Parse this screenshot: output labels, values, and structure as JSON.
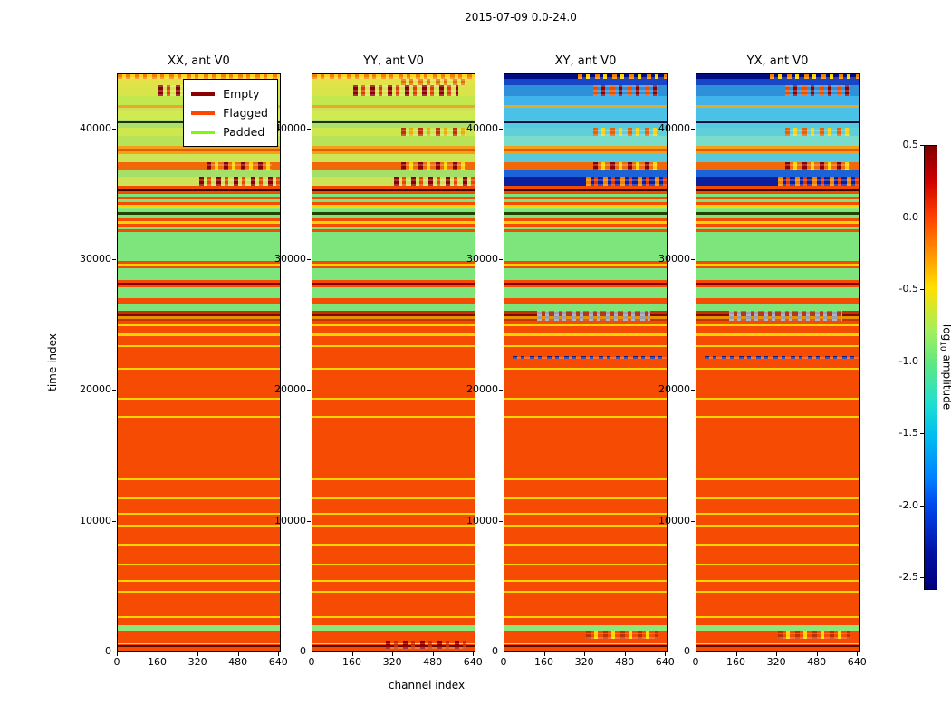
{
  "chart_data": {
    "type": "heatmap",
    "suptitle": "2015-07-09 0.0-24.0",
    "xlabel": "channel index",
    "ylabel": "time index",
    "x_max": 650,
    "y_max": 44200,
    "x_ticks": [
      {
        "v": 0,
        "label": "0"
      },
      {
        "v": 160,
        "label": "160"
      },
      {
        "v": 320,
        "label": "320"
      },
      {
        "v": 480,
        "label": "480"
      },
      {
        "v": 640,
        "label": "640"
      }
    ],
    "y_ticks": [
      {
        "v": 0,
        "label": "0"
      },
      {
        "v": 10000,
        "label": "10000"
      },
      {
        "v": 20000,
        "label": "20000"
      },
      {
        "v": 30000,
        "label": "30000"
      },
      {
        "v": 40000,
        "label": "40000"
      }
    ],
    "legend": [
      {
        "label": "Empty",
        "color": "#8b0000"
      },
      {
        "label": "Flagged",
        "color": "#ff4500"
      },
      {
        "label": "Padded",
        "color": "#7cfc00"
      }
    ],
    "colorbar": {
      "label_pre": "log",
      "label_sub": "10",
      "label_post": " amplitude",
      "ticks": [
        {
          "label": "0.5",
          "f": 0.0
        },
        {
          "label": "0.0",
          "f": 0.162
        },
        {
          "label": "-0.5",
          "f": 0.324
        },
        {
          "label": "-1.0",
          "f": 0.486
        },
        {
          "label": "-1.5",
          "f": 0.648
        },
        {
          "label": "-2.0",
          "f": 0.81
        },
        {
          "label": "-2.5",
          "f": 0.972
        }
      ],
      "gradient": [
        {
          "p": 0,
          "c": "#800000"
        },
        {
          "p": 8,
          "c": "#d00000"
        },
        {
          "p": 16,
          "c": "#ff4000"
        },
        {
          "p": 24,
          "c": "#ff9000"
        },
        {
          "p": 32,
          "c": "#ffe000"
        },
        {
          "p": 42,
          "c": "#a0f060"
        },
        {
          "p": 49,
          "c": "#60e880"
        },
        {
          "p": 58,
          "c": "#20e0d0"
        },
        {
          "p": 65,
          "c": "#00c0f0"
        },
        {
          "p": 75,
          "c": "#0080ff"
        },
        {
          "p": 81,
          "c": "#0048f0"
        },
        {
          "p": 92,
          "c": "#0010a0"
        },
        {
          "p": 100,
          "c": "#000080"
        }
      ]
    },
    "bands_common": [
      {
        "t0": 0,
        "t1": 25300,
        "c": "#f54b03"
      },
      {
        "t0": 280,
        "t1": 430,
        "c": "#5a1000"
      },
      {
        "t0": 480,
        "t1": 630,
        "c": "#ffd400"
      },
      {
        "t0": 1550,
        "t1": 1980,
        "c": "#8ce87d"
      },
      {
        "t0": 2520,
        "t1": 2670,
        "c": "#ffd400"
      },
      {
        "t0": 4420,
        "t1": 4570,
        "c": "#ffd400"
      },
      {
        "t0": 5260,
        "t1": 5410,
        "c": "#ffd400"
      },
      {
        "t0": 6500,
        "t1": 6650,
        "c": "#ffd400"
      },
      {
        "t0": 8020,
        "t1": 8170,
        "c": "#ffd400"
      },
      {
        "t0": 9530,
        "t1": 9680,
        "c": "#ffd400"
      },
      {
        "t0": 10440,
        "t1": 10590,
        "c": "#ffd400"
      },
      {
        "t0": 11640,
        "t1": 11790,
        "c": "#ffd400"
      },
      {
        "t0": 13050,
        "t1": 13200,
        "c": "#ffd400"
      },
      {
        "t0": 17830,
        "t1": 17990,
        "c": "#ffd400"
      },
      {
        "t0": 19260,
        "t1": 19420,
        "c": "#ffd400"
      },
      {
        "t0": 21540,
        "t1": 21700,
        "c": "#ffd400"
      },
      {
        "t0": 23260,
        "t1": 23420,
        "c": "#ffd400"
      },
      {
        "t0": 24140,
        "t1": 24300,
        "c": "#ffd400"
      },
      {
        "t0": 24850,
        "t1": 25010,
        "c": "#ffd400"
      },
      {
        "t0": 25300,
        "t1": 26050,
        "stripes": [
          "#c23500",
          "#7c0c00",
          "#e89000",
          "#c23500"
        ]
      },
      {
        "t0": 26050,
        "t1": 26650,
        "c": "#7de57b"
      },
      {
        "t0": 26650,
        "t1": 27060,
        "c": "#f54b03"
      },
      {
        "t0": 27060,
        "t1": 27900,
        "c": "#7de57b"
      },
      {
        "t0": 27900,
        "t1": 28420,
        "stripes": [
          "#f54b03",
          "#8b0000",
          "#f54b03",
          "#ffd400"
        ]
      },
      {
        "t0": 28420,
        "t1": 29350,
        "c": "#7de57b"
      },
      {
        "t0": 29350,
        "t1": 29880,
        "c": "#f54b03"
      },
      {
        "t0": 29560,
        "t1": 29700,
        "c": "#ffd400"
      },
      {
        "t0": 29880,
        "t1": 32040,
        "c": "#7de57b"
      },
      {
        "t0": 32040,
        "t1": 32520,
        "stripes": [
          "#7de57b",
          "#f54b03",
          "#7de57b",
          "#7de57b"
        ]
      },
      {
        "t0": 32520,
        "t1": 33120,
        "stripes": [
          "#f54b03",
          "#ffd400",
          "#f54b03",
          "#8b0000"
        ]
      },
      {
        "t0": 33120,
        "t1": 33820,
        "stripes": [
          "#7de57b",
          "#224400",
          "#7de57b",
          "#7de57b"
        ]
      },
      {
        "t0": 33820,
        "t1": 34420,
        "stripes": [
          "#f54b03",
          "#ffd400",
          "#8ce87d",
          "#f54b03"
        ]
      },
      {
        "t0": 34420,
        "t1": 35000,
        "stripes": [
          "#7de57b",
          "#f54b03",
          "#7de57b",
          "#224400"
        ]
      }
    ],
    "bands_top_A": [
      {
        "t0": 35000,
        "t1": 35660,
        "stripes": [
          "#f24c00",
          "#3a0800",
          "#f24c00",
          "#f24c00"
        ]
      },
      {
        "t0": 35660,
        "t1": 36360,
        "c": "#cfe257",
        "sp": [
          {
            "x0": 0.5,
            "x1": 1.0,
            "cs": [
              "#8b0000",
              "#e84800"
            ]
          }
        ]
      },
      {
        "t0": 36360,
        "t1": 36820,
        "c": "#a4e068"
      },
      {
        "t0": 36820,
        "t1": 37460,
        "c": "#f1680a",
        "sp": [
          {
            "x0": 0.55,
            "x1": 0.95,
            "cs": [
              "#8b0000",
              "#ffd400"
            ]
          }
        ]
      },
      {
        "t0": 37460,
        "t1": 38060,
        "c": "#cce455"
      },
      {
        "t0": 38060,
        "t1": 38700,
        "stripes": [
          "#f2a018",
          "#e85a00",
          "#f2a018",
          "#e85a00"
        ]
      },
      {
        "t0": 38700,
        "t1": 39460,
        "c": "#b8e257"
      },
      {
        "t0": 39460,
        "t1": 40110,
        "c": "#cde84f",
        "sp": [
          {
            "x0": 0.55,
            "x1": 0.95,
            "cs": [
              "#c03000",
              "#e8b000"
            ]
          }
        ]
      },
      {
        "t0": 40110,
        "t1": 40420,
        "c": "#ade06b"
      },
      {
        "t0": 40420,
        "t1": 40560,
        "c": "#223300"
      },
      {
        "t0": 40560,
        "t1": 40760,
        "c": "#ade06b"
      },
      {
        "t0": 40760,
        "t1": 41360,
        "c": "#d0ea52"
      },
      {
        "t0": 41360,
        "t1": 41860,
        "stripes": [
          "#e8a828",
          "#cfe257",
          "#e8a828",
          "#cfe257"
        ]
      },
      {
        "t0": 41860,
        "t1": 42560,
        "c": "#c2e84e"
      },
      {
        "t0": 42560,
        "t1": 43360,
        "c": "#d8e44a",
        "sp": [
          {
            "x0": 0.25,
            "x1": 0.9,
            "cs": [
              "#8b0000",
              "#d84000"
            ]
          }
        ]
      },
      {
        "t0": 43360,
        "t1": 43860,
        "c": "#e4e249",
        "sp": [
          {
            "x0": 0.55,
            "x1": 0.95,
            "cs": [
              "#e07000"
            ]
          }
        ]
      },
      {
        "t0": 43860,
        "t1": 44200,
        "c": "#ffd61e",
        "sp": [
          {
            "x0": 0.0,
            "x1": 1.0,
            "cs": [
              "#f08000"
            ]
          }
        ]
      }
    ],
    "bands_top_B": [
      {
        "t0": 35000,
        "t1": 35660,
        "stripes": [
          "#f24c00",
          "#3a0800",
          "#f24c00",
          "#f24c00"
        ]
      },
      {
        "t0": 35660,
        "t1": 36360,
        "c": "#0a1f9e",
        "sp": [
          {
            "x0": 0.5,
            "x1": 1.0,
            "cs": [
              "#f08000",
              "#e83000"
            ]
          }
        ]
      },
      {
        "t0": 36360,
        "t1": 36820,
        "c": "#1b63d6"
      },
      {
        "t0": 36820,
        "t1": 37460,
        "c": "#f1680a",
        "sp": [
          {
            "x0": 0.55,
            "x1": 0.95,
            "cs": [
              "#8b0000",
              "#ffd400"
            ]
          }
        ]
      },
      {
        "t0": 37460,
        "t1": 38060,
        "c": "#58c8da"
      },
      {
        "t0": 38060,
        "t1": 38700,
        "stripes": [
          "#f2a018",
          "#e85a00",
          "#f2a018",
          "#e85a00"
        ]
      },
      {
        "t0": 38700,
        "t1": 39460,
        "c": "#7adcca"
      },
      {
        "t0": 39460,
        "t1": 40110,
        "c": "#60cfda",
        "sp": [
          {
            "x0": 0.55,
            "x1": 0.95,
            "cs": [
              "#e86000",
              "#ffd400"
            ]
          }
        ]
      },
      {
        "t0": 40110,
        "t1": 40420,
        "c": "#55c8e2"
      },
      {
        "t0": 40420,
        "t1": 40560,
        "c": "#0a1440"
      },
      {
        "t0": 40560,
        "t1": 40760,
        "c": "#55c8e2"
      },
      {
        "t0": 40760,
        "t1": 41360,
        "c": "#4ac2e8"
      },
      {
        "t0": 41360,
        "t1": 41860,
        "stripes": [
          "#e8a828",
          "#4ac2e8",
          "#e8a828",
          "#4ac2e8"
        ]
      },
      {
        "t0": 41860,
        "t1": 42560,
        "c": "#40b4ea"
      },
      {
        "t0": 42560,
        "t1": 43360,
        "c": "#2f90da",
        "sp": [
          {
            "x0": 0.55,
            "x1": 0.95,
            "cs": [
              "#e85000",
              "#8b0000"
            ]
          }
        ]
      },
      {
        "t0": 43360,
        "t1": 43860,
        "c": "#1747c8"
      },
      {
        "t0": 43860,
        "t1": 44200,
        "c": "#000d80",
        "sp": [
          {
            "x0": 0.45,
            "x1": 1.0,
            "cs": [
              "#f08000",
              "#ffd400"
            ]
          }
        ]
      }
    ],
    "panels": [
      {
        "title": "XX, ant V0",
        "top": "A",
        "extras": []
      },
      {
        "title": "YY, ant V0",
        "top": "A",
        "extras": [
          {
            "t0": 150,
            "t1": 780,
            "sp": [
              {
                "x0": 0.45,
                "x1": 0.95,
                "cs": [
                  "#8b0000",
                  "#c03000"
                ]
              }
            ]
          }
        ]
      },
      {
        "title": "XY, ant V0",
        "top": "B",
        "extras": [
          {
            "t0": 900,
            "t1": 1500,
            "sp": [
              {
                "x0": 0.5,
                "x1": 0.95,
                "cs": [
                  "#c03000",
                  "#ffd400"
                ]
              }
            ]
          },
          {
            "t0": 22380,
            "t1": 22570,
            "sp": [
              {
                "x0": 0.05,
                "x1": 1.0,
                "cs": [
                  "#102090"
                ]
              }
            ]
          },
          {
            "t0": 25300,
            "t1": 26050,
            "sp": [
              {
                "x0": 0.2,
                "x1": 0.9,
                "cs": [
                  "#9aa0b0"
                ]
              }
            ]
          }
        ]
      },
      {
        "title": "YX, ant V0",
        "top": "B",
        "extras": [
          {
            "t0": 900,
            "t1": 1500,
            "sp": [
              {
                "x0": 0.5,
                "x1": 0.95,
                "cs": [
                  "#c03000",
                  "#ffd400"
                ]
              }
            ]
          },
          {
            "t0": 22380,
            "t1": 22570,
            "sp": [
              {
                "x0": 0.05,
                "x1": 1.0,
                "cs": [
                  "#102090"
                ]
              }
            ]
          },
          {
            "t0": 25300,
            "t1": 26050,
            "sp": [
              {
                "x0": 0.2,
                "x1": 0.9,
                "cs": [
                  "#9aa0b0"
                ]
              }
            ]
          }
        ]
      }
    ]
  }
}
